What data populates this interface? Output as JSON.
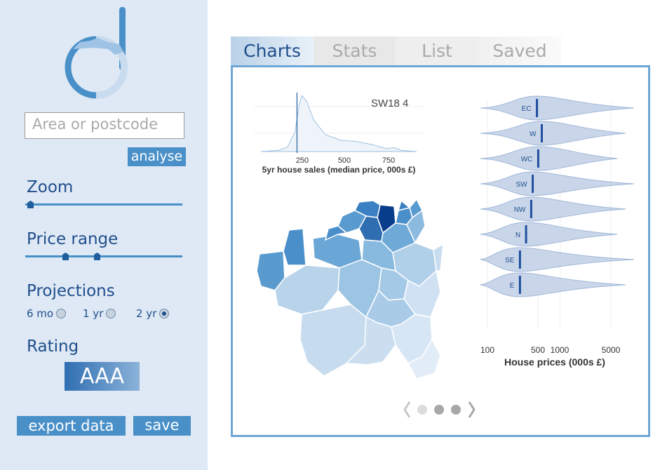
{
  "sidebar": {
    "search_placeholder": "Area or postcode",
    "analyse_label": "analyse",
    "zoom_label": "Zoom",
    "zoom_value": 0.03,
    "price_range_label": "Price range",
    "price_range_values": [
      0.26,
      0.46
    ],
    "projections_label": "Projections",
    "projection_options": [
      {
        "label": "6 mo",
        "selected": false
      },
      {
        "label": "1 yr",
        "selected": false
      },
      {
        "label": "2 yr",
        "selected": true
      }
    ],
    "rating_label": "Rating",
    "rating_value": "AAA",
    "export_label": "export data",
    "save_label": "save"
  },
  "tabs": [
    {
      "label": "Charts",
      "active": true
    },
    {
      "label": "Stats",
      "active": false
    },
    {
      "label": "List",
      "active": false
    },
    {
      "label": "Saved",
      "active": false
    }
  ],
  "density_chart": {
    "postcode_label": "SW18 4",
    "xlabel": "5yr house sales (median price, 000s £)",
    "ticks": [
      "250",
      "500",
      "750"
    ],
    "marker": 250
  },
  "violin_chart": {
    "xlabel": "House prices (000s £)",
    "ticks": [
      "100",
      "500",
      "1000",
      "5000"
    ],
    "regions": [
      "EC",
      "W",
      "WC",
      "SW",
      "NW",
      "N",
      "SE",
      "E"
    ]
  },
  "carousel": {
    "pages": 3,
    "active": 2
  },
  "colors": {
    "accent": "#4a90c8",
    "dark": "#1f4e8c",
    "sidebar": "#dfe9f5"
  },
  "chart_data": [
    {
      "type": "area",
      "title": "SW18 4",
      "xlabel": "5yr house sales (median price, 000s £)",
      "x": [
        60,
        150,
        200,
        240,
        260,
        275,
        300,
        340,
        400,
        480,
        560,
        650,
        720,
        760,
        800,
        880
      ],
      "y": [
        0.0,
        0.02,
        0.08,
        0.35,
        0.8,
        1.0,
        0.9,
        0.55,
        0.3,
        0.2,
        0.18,
        0.12,
        0.05,
        0.07,
        0.02,
        0.0
      ],
      "xticks": [
        250,
        500,
        750
      ],
      "reference_line": 250
    },
    {
      "type": "violin",
      "xlabel": "House prices (000s £)",
      "xscale": "log",
      "xticks": [
        100,
        500,
        1000,
        5000
      ],
      "categories": [
        "EC",
        "W",
        "WC",
        "SW",
        "NW",
        "N",
        "SE",
        "E"
      ],
      "medians": [
        480,
        560,
        500,
        420,
        400,
        340,
        280,
        280
      ]
    }
  ]
}
